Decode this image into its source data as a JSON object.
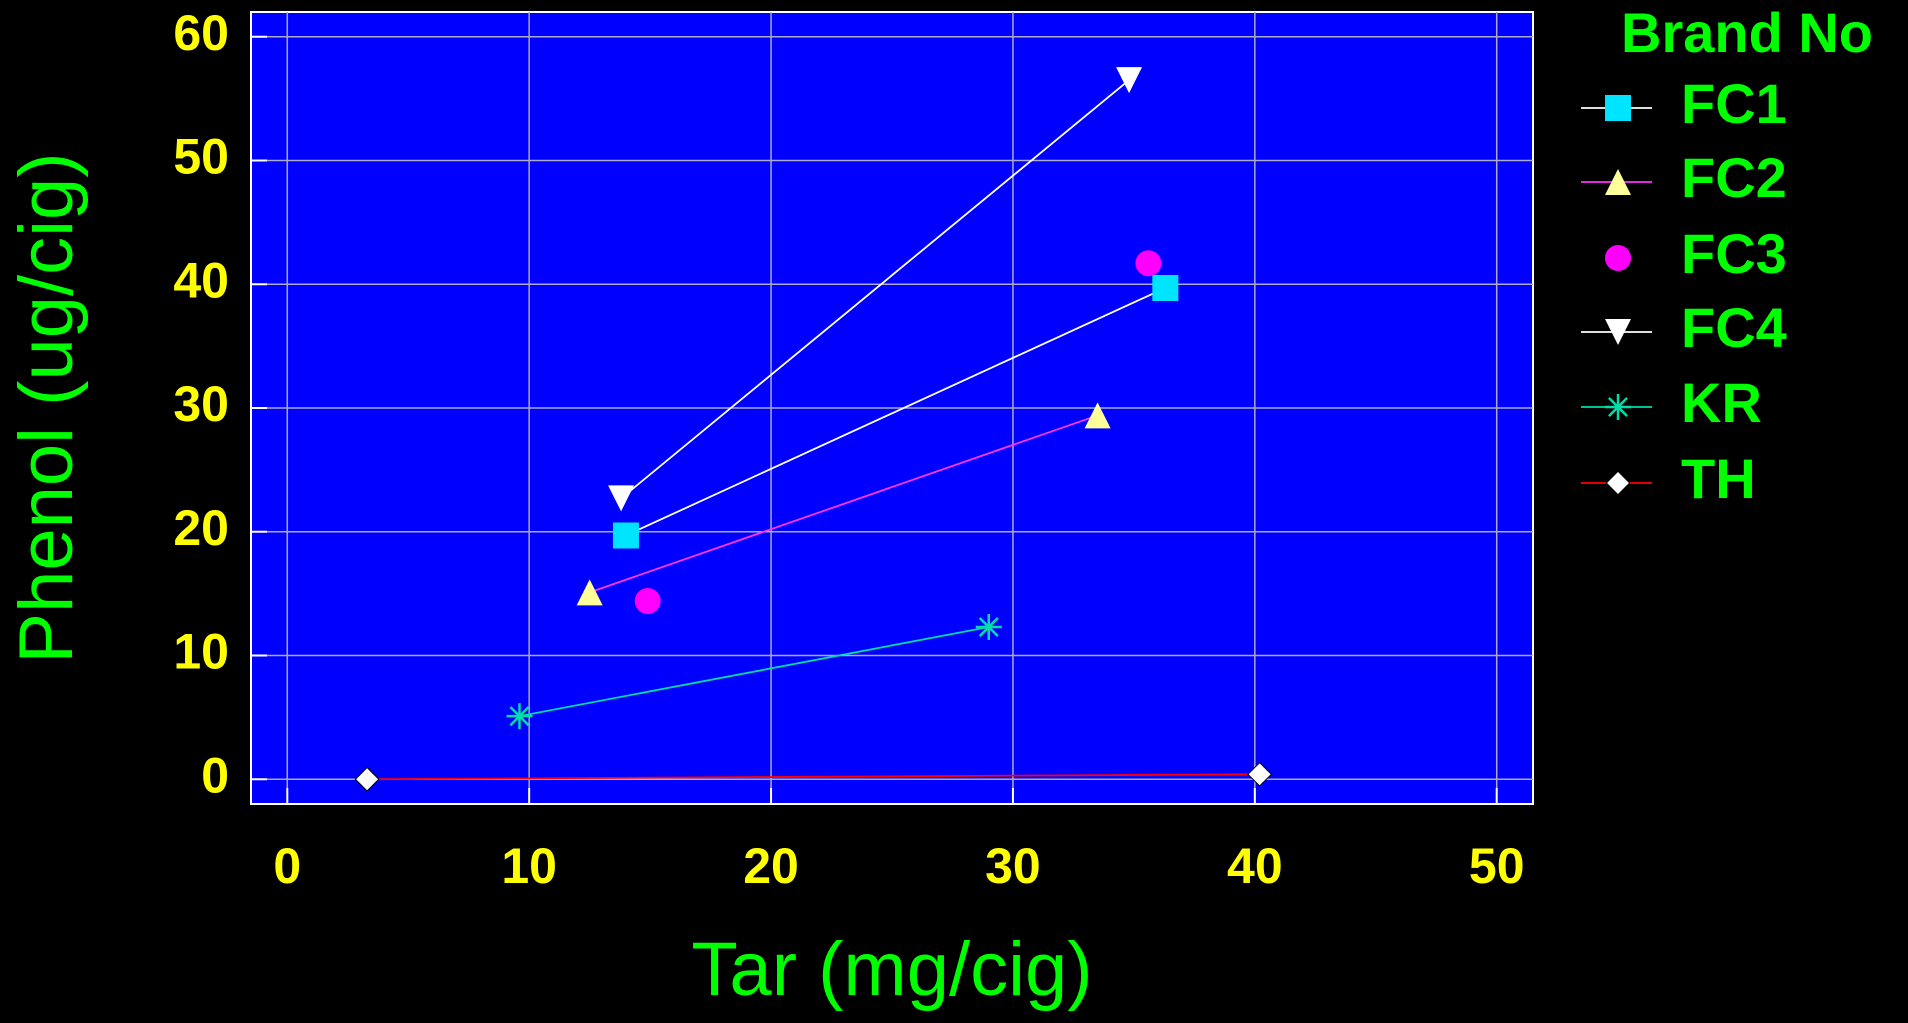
{
  "chart_data": {
    "type": "scatter",
    "xlabel": "Tar (mg/cig)",
    "ylabel": "Phenol (ug/cig)",
    "legend_title": "Brand No",
    "xlim": [
      -1.5,
      51.5
    ],
    "ylim": [
      -2,
      62
    ],
    "xticks": [
      0,
      10,
      20,
      30,
      40,
      50
    ],
    "yticks": [
      0,
      10,
      20,
      30,
      40,
      50,
      60
    ],
    "grid": true,
    "legend": "right",
    "series": [
      {
        "name": "FC1",
        "color": "#ffffff",
        "marker": "square",
        "marker_color": "#00e5ff",
        "x": [
          14.0,
          36.3
        ],
        "values": [
          19.7,
          39.7
        ]
      },
      {
        "name": "FC2",
        "color": "#ff33ff",
        "marker": "triangle",
        "marker_color": "#ffff99",
        "x": [
          12.5,
          33.5
        ],
        "values": [
          15.1,
          29.4
        ]
      },
      {
        "name": "FC3",
        "color": null,
        "marker": "circle",
        "marker_color": "#ff00ff",
        "x": [
          14.9,
          35.6
        ],
        "values": [
          14.4,
          41.7
        ]
      },
      {
        "name": "FC4",
        "color": "#ffffff",
        "marker": "triangle-down",
        "marker_color": "#ffffff",
        "x": [
          13.8,
          34.8
        ],
        "values": [
          22.7,
          56.5
        ]
      },
      {
        "name": "KR",
        "color": "#00ddaa",
        "marker": "asterisk",
        "marker_color": "#00ddaa",
        "x": [
          9.6,
          29.0
        ],
        "values": [
          5.1,
          12.3
        ]
      },
      {
        "name": "TH",
        "color": "#ff0000",
        "marker": "diamond",
        "marker_color": "#ffffff",
        "x": [
          3.3,
          40.2
        ],
        "values": [
          0,
          0.4
        ]
      }
    ]
  }
}
